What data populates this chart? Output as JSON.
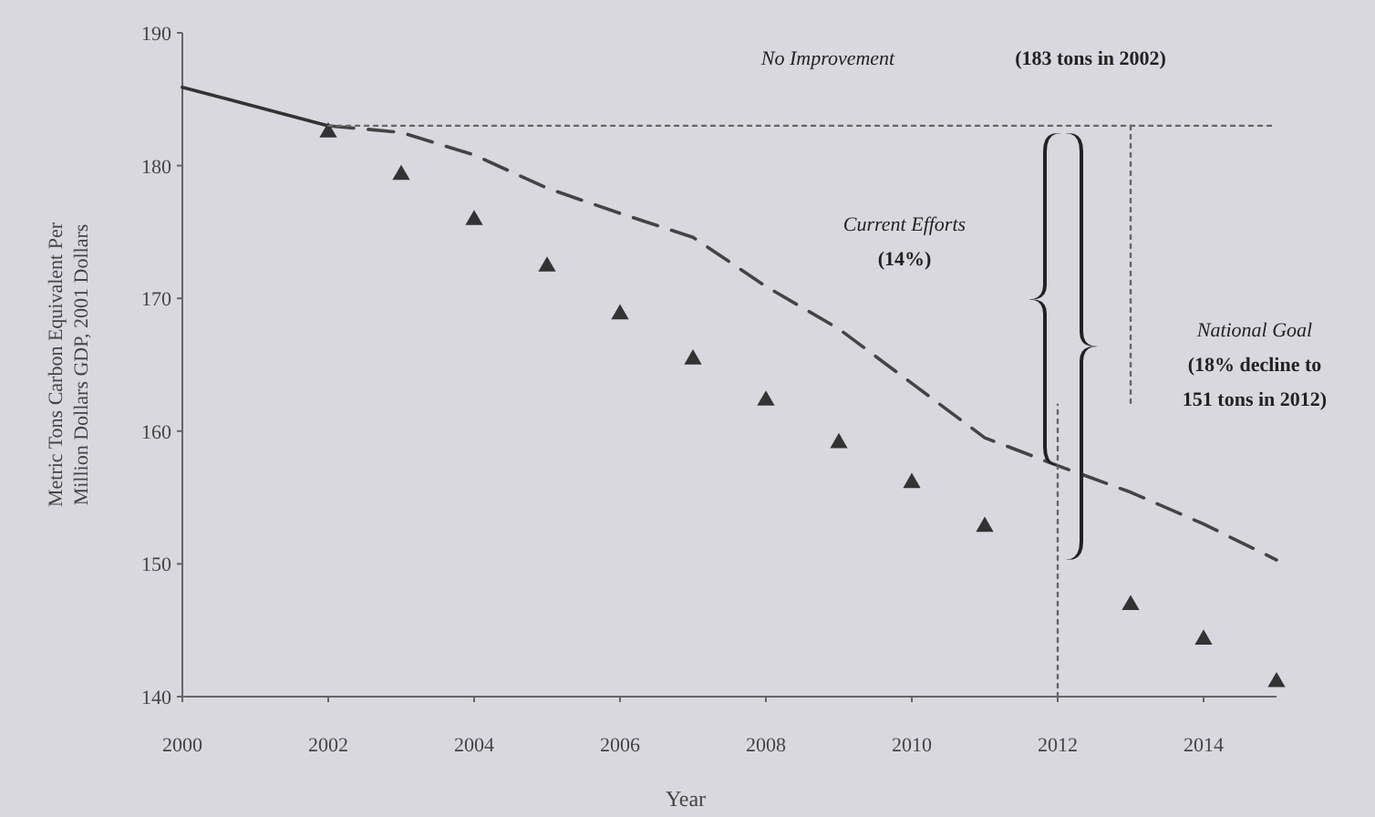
{
  "chart_data": {
    "type": "line",
    "xlabel": "Year",
    "ylabel": "Metric Tons Carbon Equivalent Per\nMillion Dollars GDP, 2001 Dollars",
    "xlim": [
      2000,
      2015
    ],
    "xticks": [
      2000,
      2002,
      2004,
      2006,
      2008,
      2010,
      2012,
      2014
    ],
    "ylim": [
      140,
      190
    ],
    "yticks": [
      140,
      150,
      160,
      170,
      180,
      190
    ],
    "grid": false,
    "series": [
      {
        "color": "#333333",
        "line_style": "solid",
        "marker": "none",
        "x": [
          2000,
          2002
        ],
        "values": [
          185.9,
          183
        ]
      },
      {
        "color": "#444444",
        "line_style": "dashed",
        "marker": "none",
        "x": [
          2002,
          2003,
          2004,
          2005,
          2006,
          2007,
          2008,
          2009,
          2010,
          2011,
          2012,
          2013,
          2014,
          2015
        ],
        "values": [
          183,
          182.5,
          180.8,
          178.3,
          176.4,
          174.6,
          170.9,
          167.7,
          163.6,
          159.5,
          157.4,
          155.4,
          153,
          150.3
        ]
      },
      {
        "type": "scatter",
        "color": "#333333",
        "marker": "triangle",
        "x": [
          2002,
          2003,
          2004,
          2005,
          2006,
          2007,
          2008,
          2009,
          2010,
          2011,
          2013,
          2014,
          2015
        ],
        "values": [
          182.5,
          179.3,
          175.9,
          172.4,
          168.8,
          165.4,
          162.3,
          159.1,
          156.1,
          152.8,
          146.9,
          144.3,
          141.1
        ]
      },
      {
        "color": "#666666",
        "line_style": "dotted",
        "marker": "none",
        "x": [
          2002,
          2015
        ],
        "values": [
          183,
          183
        ]
      },
      {
        "color": "#666666",
        "line_style": "dotted",
        "marker": "none",
        "x": [
          2012,
          2012
        ],
        "values": [
          140,
          162
        ]
      },
      {
        "color": "#666666",
        "line_style": "dotted",
        "marker": "none",
        "x": [
          2013,
          2013
        ],
        "values": [
          183,
          162
        ]
      }
    ],
    "annotations": [
      "No Improvement",
      "(183 tons in 2002)",
      "Current Efforts\n(14%)",
      "National Goal\n(18% decline to\n151 tons in 2012)"
    ]
  }
}
